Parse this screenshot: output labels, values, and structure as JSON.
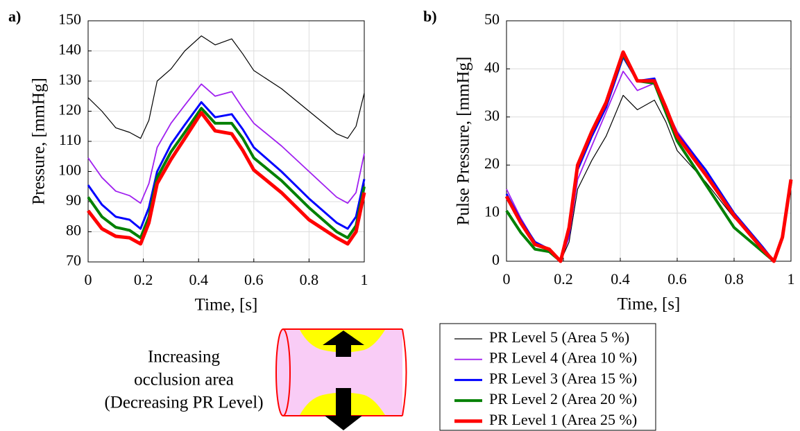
{
  "chart_data": [
    {
      "type": "line",
      "label": "a)",
      "x_label": "Time, [s]",
      "y_label": "Pressure, [mmHg]",
      "x": [
        0,
        0.05,
        0.1,
        0.15,
        0.19,
        0.22,
        0.25,
        0.3,
        0.35,
        0.41,
        0.46,
        0.52,
        0.56,
        0.6,
        0.7,
        0.8,
        0.9,
        0.94,
        0.97,
        1
      ],
      "xlim": [
        0,
        1
      ],
      "ylim": [
        70,
        150
      ],
      "xticks": [
        0,
        0.2,
        0.4,
        0.6,
        0.8,
        1
      ],
      "yticks": [
        70,
        80,
        90,
        100,
        110,
        120,
        130,
        140,
        150
      ],
      "grid": true,
      "series": [
        {
          "color": "#000000",
          "width": 1.2,
          "values": [
            124.5,
            120,
            114.5,
            113,
            111,
            117,
            130,
            134,
            140,
            145,
            142,
            144,
            139,
            133.5,
            127.5,
            120,
            112.5,
            111,
            115,
            126
          ]
        },
        {
          "color": "#a020f0",
          "width": 1.8,
          "values": [
            104.5,
            98,
            93.5,
            92,
            89.5,
            96,
            108,
            116,
            122,
            129,
            125,
            126.5,
            121,
            116,
            108.5,
            100,
            91.5,
            89.5,
            93,
            106
          ]
        },
        {
          "color": "#0000ff",
          "width": 3,
          "values": [
            95.5,
            89,
            85,
            84,
            81,
            88,
            100,
            109,
            115.5,
            123,
            118,
            119,
            114,
            108,
            100,
            91,
            83,
            81,
            85,
            97.5
          ]
        },
        {
          "color": "#008000",
          "width": 4,
          "values": [
            91.5,
            85,
            81.5,
            80.5,
            78,
            85,
            98,
            106.5,
            113,
            121,
            116,
            116,
            111,
            104.5,
            97,
            88,
            80,
            78,
            82,
            95
          ]
        },
        {
          "color": "#ff0000",
          "width": 5,
          "values": [
            87,
            81,
            78.5,
            78,
            76,
            83,
            96,
            104,
            111,
            119.5,
            113.5,
            112.5,
            107,
            100.5,
            93,
            84,
            78,
            76,
            80,
            93
          ]
        }
      ]
    },
    {
      "type": "line",
      "label": "b)",
      "x_label": "Time, [s]",
      "y_label": "Pulse Pressure, [mmHg]",
      "x": [
        0,
        0.05,
        0.1,
        0.15,
        0.19,
        0.22,
        0.25,
        0.3,
        0.35,
        0.41,
        0.46,
        0.52,
        0.56,
        0.6,
        0.7,
        0.8,
        0.9,
        0.94,
        0.97,
        1
      ],
      "xlim": [
        0,
        1
      ],
      "ylim": [
        0,
        50
      ],
      "xticks": [
        0,
        0.2,
        0.4,
        0.6,
        0.8,
        1
      ],
      "yticks": [
        0,
        10,
        20,
        30,
        40,
        50
      ],
      "grid": true,
      "series": [
        {
          "name": "PR Level 5 (Area 5 %)",
          "color": "#000000",
          "width": 1.2,
          "values": [
            13,
            8,
            3.5,
            2.5,
            0,
            4,
            15,
            21,
            26,
            34.5,
            31.5,
            33.5,
            29,
            23,
            16.5,
            9,
            3,
            0,
            5,
            15
          ]
        },
        {
          "name": "PR Level 4 (Area 10 %)",
          "color": "#a020f0",
          "width": 1.8,
          "values": [
            15,
            9,
            4,
            2.5,
            0,
            5,
            17,
            24,
            31,
            39.5,
            35.5,
            37,
            32,
            27,
            19,
            10,
            3,
            0,
            5,
            16.5
          ]
        },
        {
          "name": "PR Level 3 (Area 15 %)",
          "color": "#0000ff",
          "width": 3,
          "values": [
            14,
            8.5,
            4,
            2.5,
            0,
            6,
            19,
            26,
            32,
            42.5,
            37.5,
            38,
            32,
            26.5,
            19,
            10,
            3,
            0,
            5,
            16.5
          ]
        },
        {
          "name": "PR Level 2 (Area 20 %)",
          "color": "#008000",
          "width": 4,
          "values": [
            10.5,
            6,
            2.5,
            2,
            0,
            7,
            20,
            27,
            33,
            43,
            37.5,
            37,
            31,
            25,
            16,
            7,
            2,
            0,
            5,
            16.5
          ]
        },
        {
          "name": "PR Level 1 (Area 25 %)",
          "color": "#ff0000",
          "width": 5,
          "values": [
            13.5,
            8,
            3.5,
            2.5,
            0,
            7,
            20,
            27,
            33,
            43.5,
            37.5,
            37.5,
            32,
            26,
            18,
            9.5,
            2.5,
            0,
            5,
            17
          ]
        }
      ]
    }
  ],
  "illustration": {
    "lines": [
      "Increasing",
      "occlusion area",
      "(Decreasing PR Level)"
    ]
  }
}
